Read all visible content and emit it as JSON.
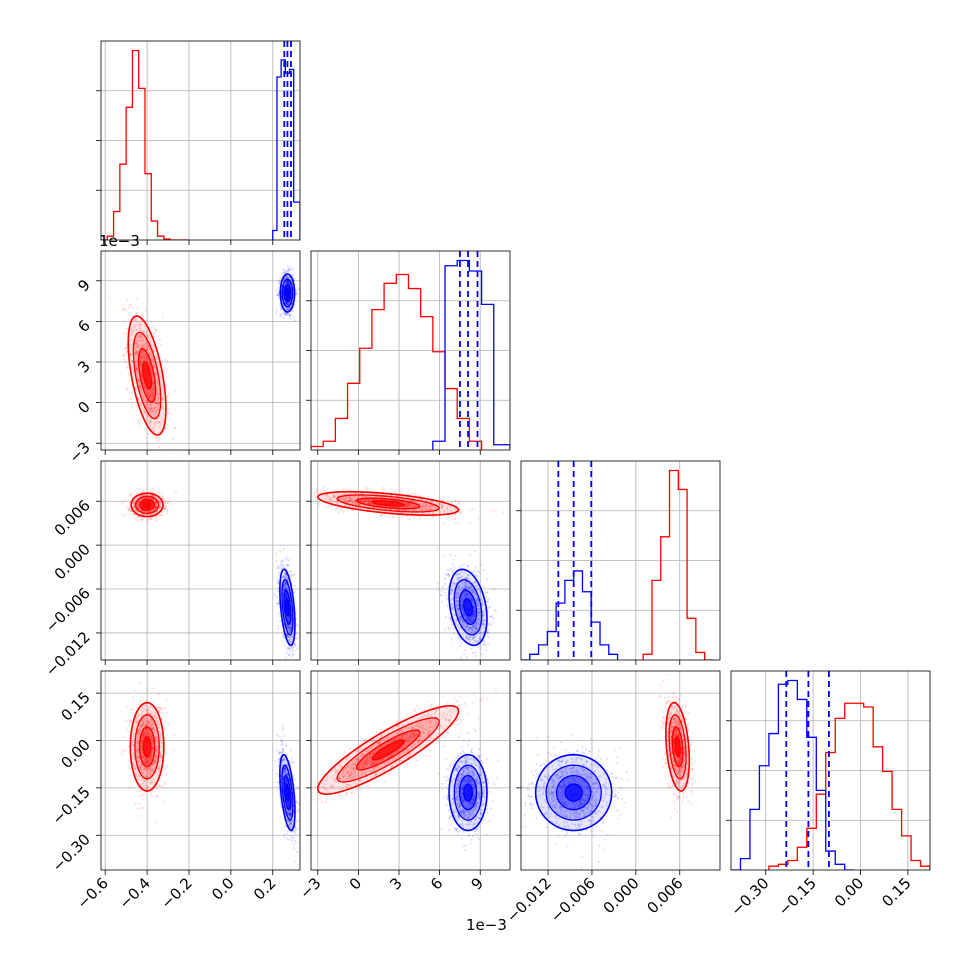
{
  "chart_data": {
    "type": "corner",
    "description_keys": [
      "a",
      "b",
      "c",
      "d"
    ],
    "colors": {
      "red": "#ff0000",
      "blue": "#0000ff",
      "grid": "#b0b0b0"
    },
    "params": [
      {
        "key": "a",
        "range": [
          -0.62,
          0.33
        ],
        "ticks": [
          -0.6,
          -0.4,
          -0.2,
          0.0,
          0.2
        ],
        "tick_labels": [
          "−0.6",
          "−0.4",
          "−0.2",
          "0.0",
          "0.2"
        ],
        "offset_text": ""
      },
      {
        "key": "b",
        "range": [
          -0.0035,
          0.0112
        ],
        "ticks": [
          -0.003,
          0.0,
          0.003,
          0.006,
          0.009
        ],
        "tick_labels": [
          "−3",
          "0",
          "3",
          "6",
          "9"
        ],
        "offset_text": "1e−3"
      },
      {
        "key": "c",
        "range": [
          -0.0157,
          0.0115
        ],
        "ticks": [
          -0.012,
          -0.006,
          0.0,
          0.006
        ],
        "tick_labels": [
          "−0.012",
          "−0.006",
          "0.000",
          "0.006"
        ],
        "offset_text": ""
      },
      {
        "key": "d",
        "range": [
          -0.41,
          0.22
        ],
        "ticks": [
          -0.3,
          -0.15,
          0.0,
          0.15
        ],
        "tick_labels": [
          "−0.30",
          "−0.15",
          "0.00",
          "0.15"
        ],
        "offset_text": ""
      }
    ],
    "histograms": [
      {
        "param": "a",
        "red": {
          "edges": [
            -0.62,
            -0.59,
            -0.56,
            -0.53,
            -0.5,
            -0.47,
            -0.44,
            -0.41,
            -0.38,
            -0.35,
            -0.32,
            -0.29,
            -0.26,
            -0.23,
            -0.2
          ],
          "counts": [
            0,
            0.02,
            0.15,
            0.4,
            0.7,
            1.0,
            0.8,
            0.35,
            0.1,
            0.02,
            0.005,
            0,
            0,
            0
          ]
        },
        "blue": {
          "edges": [
            0.2,
            0.22,
            0.24,
            0.26,
            0.28,
            0.3,
            0.33
          ],
          "counts": [
            0.05,
            0.86,
            0.95,
            0.88,
            0.9,
            0.2
          ]
        },
        "blue_quantiles": [
          0.255,
          0.27,
          0.287
        ]
      },
      {
        "param": "b",
        "red": {
          "edges": [
            -0.0035,
            -0.0026,
            -0.0017,
            -0.0008,
            0.0001,
            0.001,
            0.0019,
            0.0028,
            0.0037,
            0.0046,
            0.0055,
            0.0064,
            0.0073,
            0.0082,
            0.0091
          ],
          "counts": [
            0.02,
            0.05,
            0.18,
            0.38,
            0.58,
            0.8,
            0.95,
            1.0,
            0.92,
            0.76,
            0.56,
            0.35,
            0.18,
            0.05
          ]
        },
        "blue": {
          "edges": [
            0.0055,
            0.0064,
            0.0073,
            0.0082,
            0.0091,
            0.01,
            0.0112
          ],
          "counts": [
            0.05,
            1.05,
            1.08,
            1.02,
            0.83,
            0.03
          ]
        },
        "blue_quantiles": [
          0.0075,
          0.0081,
          0.0088
        ]
      },
      {
        "param": "c",
        "blue": {
          "edges": [
            -0.0157,
            -0.0145,
            -0.0133,
            -0.0121,
            -0.0109,
            -0.0097,
            -0.0085,
            -0.0073,
            -0.0061,
            -0.0049,
            -0.0037,
            -0.0025
          ],
          "counts": [
            0,
            0.03,
            0.08,
            0.15,
            0.3,
            0.42,
            0.47,
            0.36,
            0.2,
            0.08,
            0.03
          ]
        },
        "red": {
          "edges": [
            0.001,
            0.0022,
            0.0034,
            0.0046,
            0.0058,
            0.007,
            0.0082,
            0.0094,
            0.0106
          ],
          "counts": [
            0.03,
            0.42,
            0.65,
            1.0,
            0.9,
            0.22,
            0.04,
            0
          ]
        },
        "blue_quantiles": [
          -0.0106,
          -0.0085,
          -0.0061
        ]
      },
      {
        "param": "d",
        "blue": {
          "edges": [
            -0.41,
            -0.38,
            -0.35,
            -0.32,
            -0.29,
            -0.26,
            -0.23,
            -0.2,
            -0.17,
            -0.14,
            -0.11,
            -0.08,
            -0.05,
            -0.02
          ],
          "counts": [
            0,
            0.06,
            0.32,
            0.55,
            0.72,
            0.98,
            1.0,
            0.9,
            0.7,
            0.42,
            0.1,
            0.03,
            0
          ]
        },
        "red": {
          "edges": [
            -0.29,
            -0.26,
            -0.23,
            -0.2,
            -0.17,
            -0.14,
            -0.11,
            -0.08,
            -0.05,
            -0.02,
            0.01,
            0.04,
            0.07,
            0.1,
            0.13,
            0.16,
            0.19,
            0.22
          ],
          "counts": [
            0.02,
            0.03,
            0.05,
            0.12,
            0.22,
            0.4,
            0.62,
            0.8,
            0.88,
            0.88,
            0.86,
            0.65,
            0.52,
            0.32,
            0.18,
            0.05,
            0.02
          ]
        },
        "blue_quantiles": [
          -0.235,
          -0.165,
          -0.1
        ]
      }
    ],
    "scatters": [
      {
        "x": "a",
        "y": "b",
        "red": {
          "center": [
            -0.4,
            0.002
          ],
          "sd": [
            0.045,
            0.0022
          ],
          "corr": -0.55
        },
        "blue": {
          "center": [
            0.27,
            0.0081
          ],
          "sd": [
            0.017,
            0.0007
          ],
          "corr": 0.0
        }
      },
      {
        "x": "a",
        "y": "c",
        "red": {
          "center": [
            -0.4,
            0.0055
          ],
          "sd": [
            0.038,
            0.0008
          ],
          "corr": 0.0
        },
        "blue": {
          "center": [
            0.27,
            -0.0085
          ],
          "sd": [
            0.018,
            0.0026
          ],
          "corr": -0.45
        }
      },
      {
        "x": "b",
        "y": "c",
        "red": {
          "center": [
            0.0022,
            0.0057
          ],
          "sd": [
            0.0026,
            0.0008
          ],
          "corr": -0.55
        },
        "blue": {
          "center": [
            0.0081,
            -0.0085
          ],
          "sd": [
            0.0007,
            0.0026
          ],
          "corr": -0.3
        }
      },
      {
        "x": "a",
        "y": "d",
        "red": {
          "center": [
            -0.4,
            -0.02
          ],
          "sd": [
            0.04,
            0.07
          ],
          "corr": 0.0
        },
        "blue": {
          "center": [
            0.27,
            -0.165
          ],
          "sd": [
            0.018,
            0.06
          ],
          "corr": -0.5
        }
      },
      {
        "x": "b",
        "y": "d",
        "red": {
          "center": [
            0.0022,
            -0.03
          ],
          "sd": [
            0.0026,
            0.07
          ],
          "corr": 0.88
        },
        "blue": {
          "center": [
            0.0081,
            -0.165
          ],
          "sd": [
            0.0007,
            0.06
          ],
          "corr": 0.0
        }
      },
      {
        "x": "c",
        "y": "d",
        "red": {
          "center": [
            0.0057,
            -0.02
          ],
          "sd": [
            0.0008,
            0.07
          ],
          "corr": -0.3
        },
        "blue": {
          "center": [
            -0.0085,
            -0.165
          ],
          "sd": [
            0.0026,
            0.06
          ],
          "corr": 0.0
        }
      }
    ],
    "grid": true
  }
}
